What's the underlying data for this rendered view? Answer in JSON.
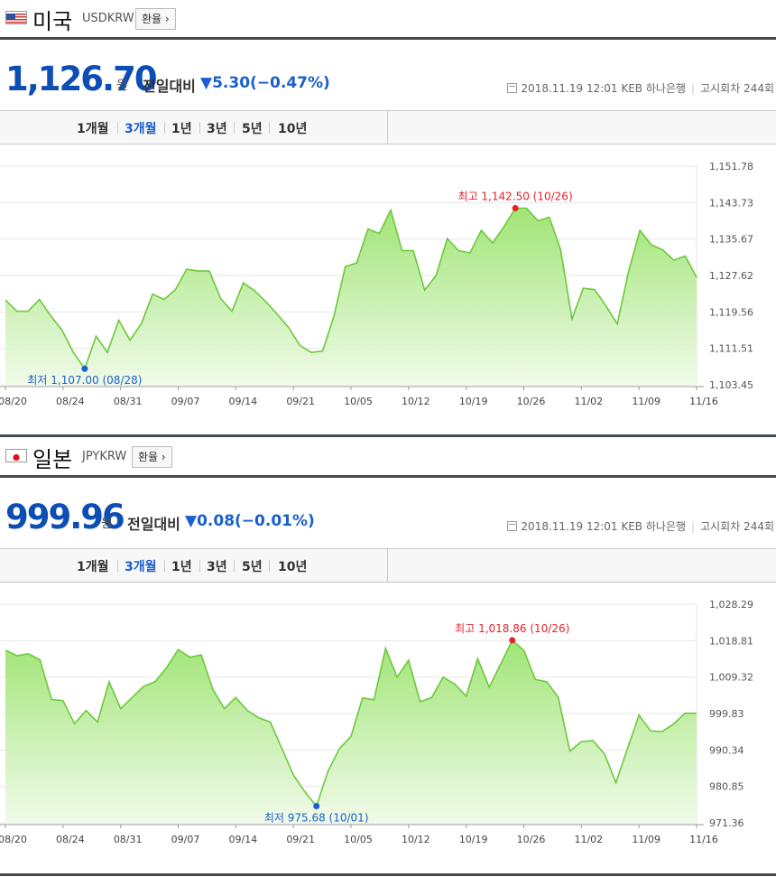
{
  "panels": [
    {
      "country": "미국",
      "code": "USDKRW",
      "fx_button": "환율",
      "price": "1,126.70",
      "unit": "원",
      "change_label": "전일대비",
      "change": "▼5.30",
      "change_pct": "(−0.47%)",
      "meta": {
        "datetime": "2018.11.19 12:01",
        "bank": "KEB 하나은행",
        "round": "고시회차 244회"
      },
      "tabs": [
        {
          "label": "1개월",
          "active": false
        },
        {
          "label": "3개월",
          "active": true
        },
        {
          "label": "1년",
          "active": false
        },
        {
          "label": "3년",
          "active": false
        },
        {
          "label": "5년",
          "active": false
        },
        {
          "label": "10년",
          "active": false
        }
      ]
    },
    {
      "country": "일본",
      "code": "JPYKRW",
      "fx_button": "환율",
      "price": "999.96",
      "unit": "원",
      "change_label": "전일대비",
      "change": "▼0.08",
      "change_pct": "(−0.01%)",
      "meta": {
        "datetime": "2018.11.19 12:01",
        "bank": "KEB 하나은행",
        "round": "고시회차 244회"
      },
      "tabs": [
        {
          "label": "1개월",
          "active": false
        },
        {
          "label": "3개월",
          "active": true
        },
        {
          "label": "1년",
          "active": false
        },
        {
          "label": "3년",
          "active": false
        },
        {
          "label": "5년",
          "active": false
        },
        {
          "label": "10년",
          "active": false
        }
      ]
    }
  ],
  "chart_data": [
    {
      "type": "area",
      "x_ticks": [
        "08/20",
        "08/24",
        "08/31",
        "09/07",
        "09/14",
        "09/21",
        "10/05",
        "10/12",
        "10/19",
        "10/26",
        "11/02",
        "11/09",
        "11/16"
      ],
      "y_ticks": [
        "1,151.78",
        "1,143.73",
        "1,135.67",
        "1,127.62",
        "1,119.56",
        "1,111.51",
        "1,103.45"
      ],
      "ylim": [
        1103.45,
        1151.78
      ],
      "values": [
        1122.2,
        1119.7,
        1119.7,
        1122.3,
        1118.7,
        1115.5,
        1110.6,
        1107.0,
        1114.2,
        1110.6,
        1117.7,
        1113.3,
        1117.0,
        1123.5,
        1122.3,
        1124.5,
        1129.0,
        1128.6,
        1128.6,
        1122.5,
        1119.7,
        1126.0,
        1124.2,
        1121.8,
        1119.0,
        1116.1,
        1112.1,
        1110.6,
        1110.9,
        1118.7,
        1129.6,
        1130.4,
        1137.9,
        1136.9,
        1142.1,
        1133.1,
        1133.1,
        1124.4,
        1127.6,
        1135.8,
        1133.1,
        1132.6,
        1137.6,
        1134.8,
        1138.4,
        1142.5,
        1142.5,
        1139.7,
        1140.5,
        1133.3,
        1118.0,
        1124.8,
        1124.5,
        1120.9,
        1116.9,
        1128.6,
        1137.6,
        1134.4,
        1133.3,
        1131.0,
        1131.9,
        1127.2
      ],
      "high": {
        "label": "최고",
        "value": "1,142.50",
        "date": "(10/26)",
        "index": 45
      },
      "low": {
        "label": "최저",
        "value": "1,107.00",
        "date": "(08/28)",
        "index": 7
      }
    },
    {
      "type": "area",
      "x_ticks": [
        "08/20",
        "08/24",
        "08/31",
        "09/07",
        "09/14",
        "09/21",
        "10/05",
        "10/12",
        "10/19",
        "10/26",
        "11/02",
        "11/09",
        "11/16"
      ],
      "y_ticks": [
        "1,028.29",
        "1,018.81",
        "1,009.32",
        "999.83",
        "990.34",
        "980.85",
        "971.36"
      ],
      "ylim": [
        971.36,
        1028.29
      ],
      "values": [
        1016.3,
        1014.9,
        1015.4,
        1013.8,
        1003.5,
        1003.2,
        997.2,
        1000.6,
        997.6,
        1008.1,
        1001.1,
        1004.0,
        1006.9,
        1008.1,
        1011.8,
        1016.5,
        1014.5,
        1015.1,
        1006.2,
        1001.1,
        1004.0,
        1000.6,
        998.7,
        997.6,
        990.7,
        983.8,
        979.4,
        975.7,
        984.8,
        990.7,
        993.9,
        1003.9,
        1003.4,
        1016.8,
        1009.3,
        1013.7,
        1002.9,
        1004.0,
        1009.3,
        1007.5,
        1004.4,
        1014.1,
        1006.7,
        1012.8,
        1018.9,
        1016.3,
        1008.7,
        1008.1,
        1004.0,
        990.0,
        992.5,
        992.8,
        989.3,
        981.8,
        990.7,
        999.4,
        995.3,
        995.1,
        997.1,
        999.9,
        999.9
      ],
      "high": {
        "label": "최고",
        "value": "1,018.86",
        "date": "(10/26)",
        "index": 44
      },
      "low": {
        "label": "최저",
        "value": "975.68",
        "date": "(10/01)",
        "index": 27
      }
    }
  ]
}
